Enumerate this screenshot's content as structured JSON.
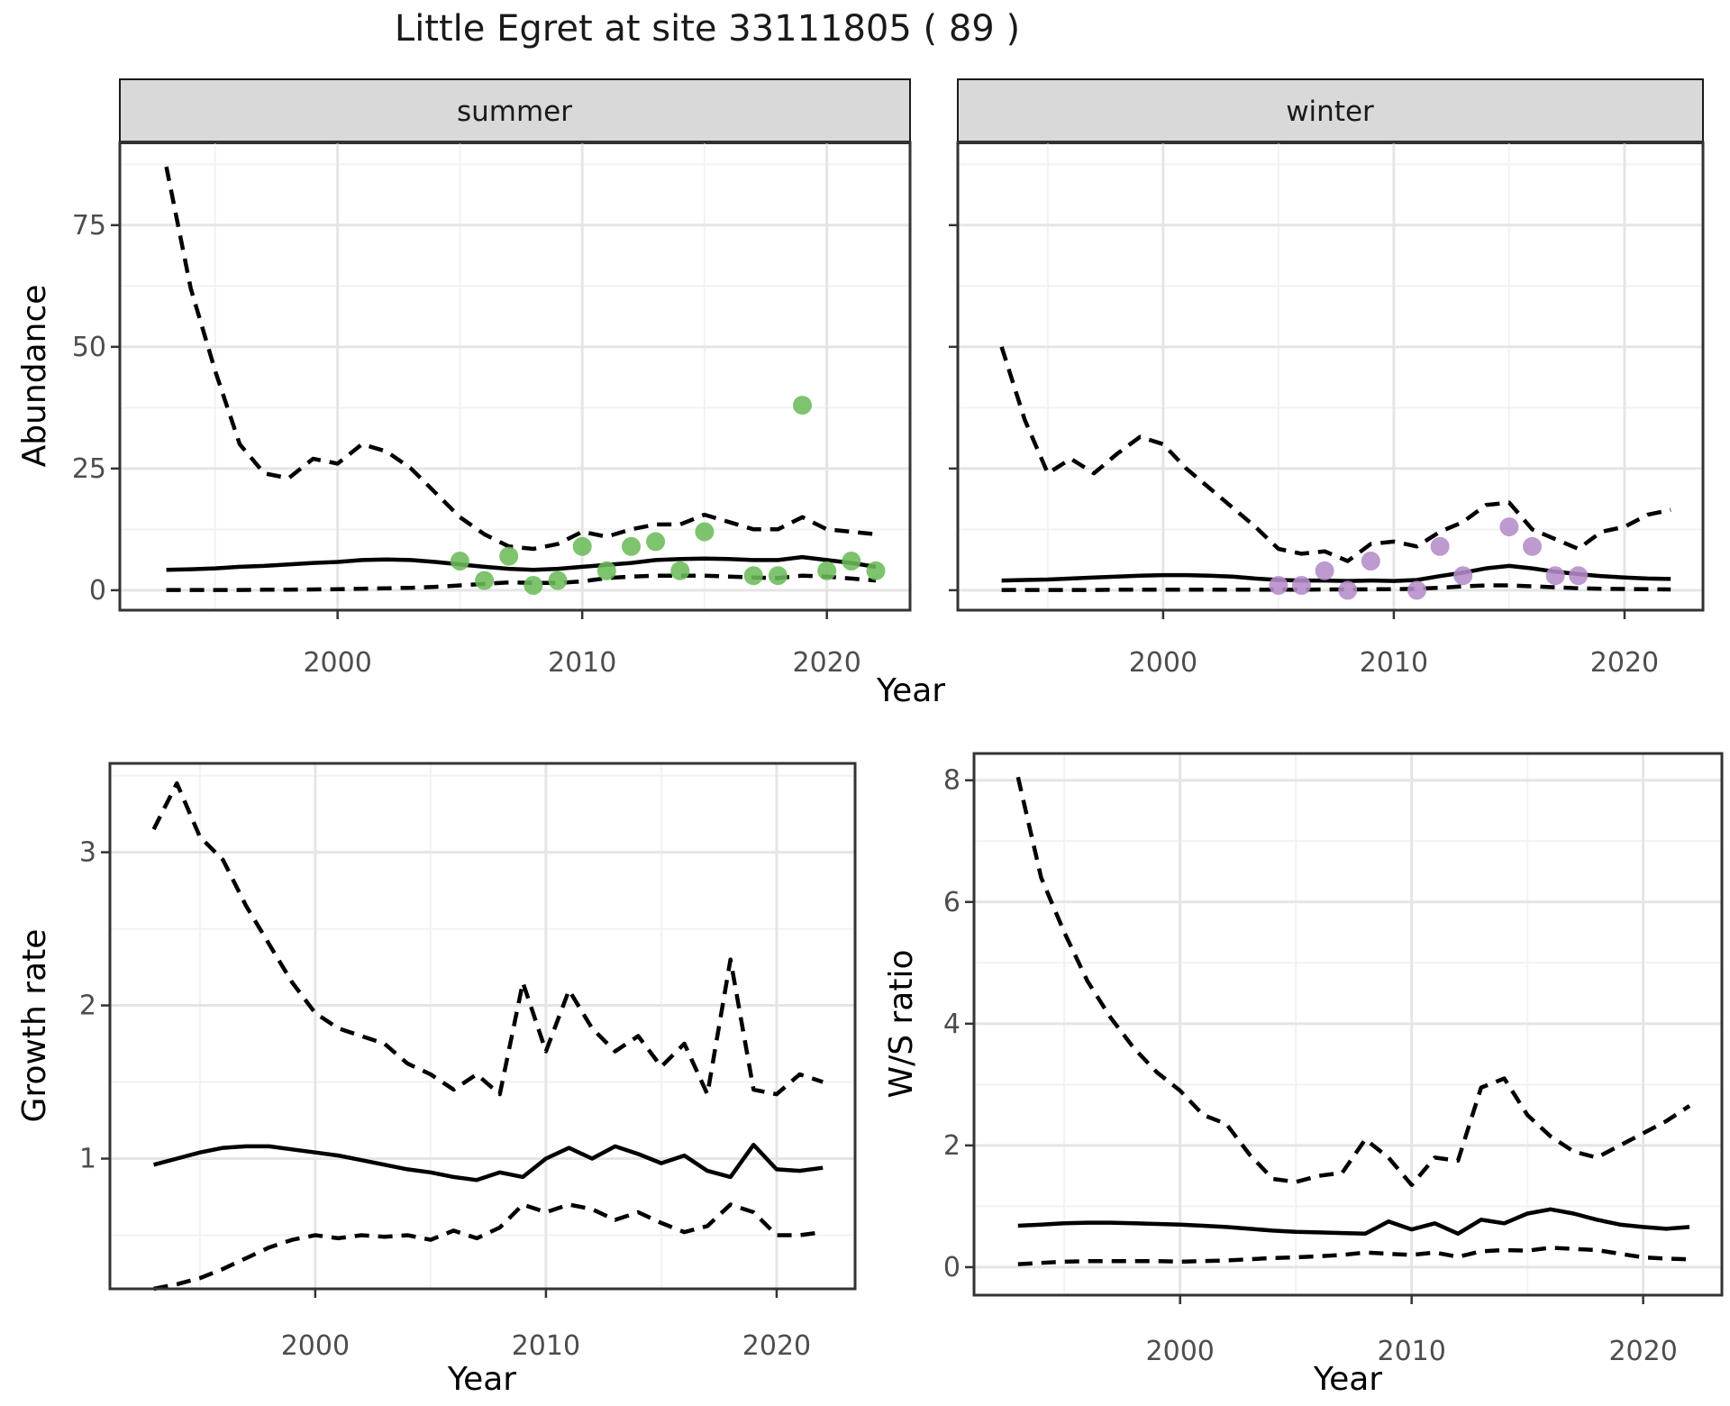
{
  "title": "Little Egret at site 33111805 ( 89 )",
  "colors": {
    "summer_point": "#6CBB5A",
    "winter_point": "#B48CC8",
    "line": "#000000",
    "strip_bg": "#D9D9D9",
    "strip_border": "#1a1a1a",
    "panel_border": "#333333",
    "grid_major": "#E5E5E5",
    "grid_minor": "#F2F2F2",
    "tick_text": "#4d4d4d"
  },
  "years": [
    1993,
    1994,
    1995,
    1996,
    1997,
    1998,
    1999,
    2000,
    2001,
    2002,
    2003,
    2004,
    2005,
    2006,
    2007,
    2008,
    2009,
    2010,
    2011,
    2012,
    2013,
    2014,
    2015,
    2016,
    2017,
    2018,
    2019,
    2020,
    2021,
    2022
  ],
  "chart_data": [
    {
      "id": "abundance-summer",
      "type": "line",
      "facet_label": "summer",
      "xlabel": "Year",
      "ylabel": "Abundance",
      "xlim": [
        1991.1,
        2023.4
      ],
      "ylim": [
        -4.1,
        92
      ],
      "xticks": [
        2000,
        2010,
        2020
      ],
      "xticks_minor": [
        1995,
        2005,
        2015
      ],
      "yticks": [
        0,
        25,
        50,
        75
      ],
      "yticks_minor": [
        12.5,
        37.5,
        62.5,
        87.5
      ],
      "series": [
        {
          "name": "upper 95% CI",
          "style": "dashed",
          "values": [
            87,
            62,
            45,
            30,
            24,
            23,
            27,
            26,
            30,
            28.5,
            25,
            20,
            15,
            11.5,
            9,
            8.5,
            9.5,
            12,
            11,
            12.5,
            13.5,
            13.5,
            15.5,
            14,
            12.5,
            12.5,
            15,
            12.5,
            12,
            11.5
          ]
        },
        {
          "name": "modelled mean",
          "style": "solid",
          "values": [
            4.2,
            4.3,
            4.5,
            4.8,
            5.0,
            5.3,
            5.6,
            5.8,
            6.2,
            6.3,
            6.2,
            5.8,
            5.3,
            4.8,
            4.4,
            4.2,
            4.4,
            4.8,
            5.2,
            5.6,
            6.2,
            6.4,
            6.5,
            6.4,
            6.2,
            6.2,
            6.8,
            6.2,
            5.6,
            4.8
          ]
        },
        {
          "name": "lower 95% CI",
          "style": "dashed",
          "values": [
            0.05,
            0.05,
            0.05,
            0.05,
            0.1,
            0.1,
            0.15,
            0.2,
            0.3,
            0.4,
            0.5,
            0.7,
            1.0,
            1.3,
            1.6,
            1.5,
            1.5,
            1.8,
            2.5,
            2.8,
            3.0,
            3.0,
            3.0,
            2.8,
            2.6,
            2.5,
            3.0,
            2.8,
            2.4,
            2.0
          ]
        }
      ],
      "points": {
        "name": "observed summer counts",
        "color": "#6CBB5A",
        "data": [
          [
            2005,
            6
          ],
          [
            2006,
            2
          ],
          [
            2007,
            7
          ],
          [
            2008,
            1
          ],
          [
            2009,
            2
          ],
          [
            2010,
            9
          ],
          [
            2011,
            4
          ],
          [
            2012,
            9
          ],
          [
            2013,
            10
          ],
          [
            2014,
            4
          ],
          [
            2015,
            12
          ],
          [
            2017,
            3
          ],
          [
            2018,
            3
          ],
          [
            2019,
            38
          ],
          [
            2020,
            4
          ],
          [
            2021,
            6
          ],
          [
            2022,
            4
          ]
        ]
      }
    },
    {
      "id": "abundance-winter",
      "type": "line",
      "facet_label": "winter",
      "xlabel": "Year",
      "ylabel": "",
      "xlim": [
        1991.1,
        2023.4
      ],
      "ylim": [
        -4.1,
        92
      ],
      "xticks": [
        2000,
        2010,
        2020
      ],
      "xticks_minor": [
        1995,
        2005,
        2015
      ],
      "yticks": [
        0,
        25,
        50,
        75
      ],
      "yticks_minor": [
        12.5,
        37.5,
        62.5,
        87.5
      ],
      "series": [
        {
          "name": "upper 95% CI",
          "style": "dashed",
          "values": [
            50,
            35,
            24,
            27,
            24,
            28,
            31.5,
            30,
            25,
            21,
            17,
            13,
            8.5,
            7.5,
            8,
            6,
            9.5,
            10,
            9,
            12,
            14,
            17.5,
            18,
            12.5,
            10.5,
            8.5,
            12,
            13,
            15.5,
            16.5
          ]
        },
        {
          "name": "modelled mean",
          "style": "solid",
          "values": [
            2.0,
            2.1,
            2.2,
            2.4,
            2.6,
            2.8,
            3.0,
            3.1,
            3.1,
            3.0,
            2.8,
            2.4,
            2.1,
            2.0,
            2.0,
            1.9,
            2.0,
            1.9,
            2.1,
            2.9,
            3.6,
            4.5,
            5.0,
            4.5,
            3.8,
            3.3,
            2.9,
            2.6,
            2.4,
            2.3
          ]
        },
        {
          "name": "lower 95% CI",
          "style": "dashed",
          "values": [
            0.05,
            0.05,
            0.05,
            0.05,
            0.05,
            0.1,
            0.1,
            0.1,
            0.1,
            0.1,
            0.1,
            0.1,
            0.1,
            0.1,
            0.15,
            0.15,
            0.2,
            0.2,
            0.3,
            0.5,
            0.8,
            1.0,
            1.0,
            0.8,
            0.6,
            0.4,
            0.3,
            0.25,
            0.2,
            0.15
          ]
        }
      ],
      "points": {
        "name": "observed winter counts",
        "color": "#B48CC8",
        "data": [
          [
            2005,
            1
          ],
          [
            2006,
            1
          ],
          [
            2007,
            4
          ],
          [
            2008,
            0
          ],
          [
            2009,
            6
          ],
          [
            2011,
            0
          ],
          [
            2012,
            9
          ],
          [
            2013,
            3
          ],
          [
            2015,
            13
          ],
          [
            2016,
            9
          ],
          [
            2017,
            3
          ],
          [
            2018,
            3
          ]
        ]
      }
    },
    {
      "id": "growth-rate",
      "type": "line",
      "xlabel": "Year",
      "ylabel": "Growth rate",
      "xlim": [
        1991.1,
        2023.4
      ],
      "ylim": [
        0.15,
        3.58
      ],
      "xticks": [
        2000,
        2010,
        2020
      ],
      "xticks_minor": [
        1995,
        2005,
        2015
      ],
      "yticks": [
        1,
        2,
        3
      ],
      "yticks_minor": [
        0.5,
        1.5,
        2.5,
        3.5
      ],
      "series": [
        {
          "name": "upper 95% CI",
          "style": "dashed",
          "values": [
            3.15,
            3.45,
            3.1,
            2.95,
            2.65,
            2.4,
            2.15,
            1.95,
            1.85,
            1.8,
            1.75,
            1.62,
            1.55,
            1.45,
            1.55,
            1.42,
            2.15,
            1.7,
            2.1,
            1.85,
            1.7,
            1.8,
            1.6,
            1.75,
            1.42,
            2.3,
            1.45,
            1.42,
            1.55,
            1.5
          ]
        },
        {
          "name": "modelled mean",
          "style": "solid",
          "values": [
            0.96,
            1.0,
            1.04,
            1.07,
            1.08,
            1.08,
            1.06,
            1.04,
            1.02,
            0.99,
            0.96,
            0.93,
            0.91,
            0.88,
            0.86,
            0.91,
            0.88,
            1.0,
            1.07,
            1.0,
            1.08,
            1.03,
            0.97,
            1.02,
            0.92,
            0.88,
            1.09,
            0.93,
            0.92,
            0.94
          ]
        },
        {
          "name": "lower 95% CI",
          "style": "dashed",
          "values": [
            0.15,
            0.18,
            0.22,
            0.28,
            0.35,
            0.42,
            0.47,
            0.5,
            0.48,
            0.5,
            0.49,
            0.5,
            0.47,
            0.53,
            0.48,
            0.55,
            0.7,
            0.65,
            0.7,
            0.67,
            0.6,
            0.65,
            0.58,
            0.52,
            0.56,
            0.7,
            0.65,
            0.5,
            0.5,
            0.52
          ]
        }
      ]
    },
    {
      "id": "ws-ratio",
      "type": "line",
      "xlabel": "Year",
      "ylabel": "W/S ratio",
      "xlim": [
        1991.1,
        2023.4
      ],
      "ylim": [
        -0.46,
        8.44
      ],
      "xticks": [
        2000,
        2010,
        2020
      ],
      "xticks_minor": [
        1995,
        2005,
        2015
      ],
      "yticks": [
        0,
        2,
        4,
        6,
        8
      ],
      "yticks_minor": [
        1,
        3,
        5,
        7
      ],
      "series": [
        {
          "name": "upper 95% CI",
          "style": "dashed",
          "values": [
            8.05,
            6.4,
            5.5,
            4.7,
            4.1,
            3.6,
            3.2,
            2.9,
            2.5,
            2.35,
            1.85,
            1.45,
            1.4,
            1.5,
            1.55,
            2.1,
            1.8,
            1.35,
            1.8,
            1.75,
            2.95,
            3.1,
            2.5,
            2.15,
            1.9,
            1.8,
            2.0,
            2.2,
            2.4,
            2.65
          ]
        },
        {
          "name": "modelled mean",
          "style": "solid",
          "values": [
            0.68,
            0.7,
            0.72,
            0.73,
            0.73,
            0.72,
            0.71,
            0.7,
            0.68,
            0.66,
            0.63,
            0.6,
            0.58,
            0.57,
            0.56,
            0.55,
            0.75,
            0.62,
            0.72,
            0.55,
            0.78,
            0.72,
            0.88,
            0.95,
            0.88,
            0.78,
            0.7,
            0.66,
            0.63,
            0.66
          ]
        },
        {
          "name": "lower 95% CI",
          "style": "dashed",
          "values": [
            0.05,
            0.07,
            0.09,
            0.1,
            0.1,
            0.1,
            0.1,
            0.09,
            0.1,
            0.11,
            0.13,
            0.15,
            0.16,
            0.18,
            0.2,
            0.24,
            0.22,
            0.2,
            0.24,
            0.17,
            0.26,
            0.28,
            0.27,
            0.32,
            0.3,
            0.28,
            0.22,
            0.16,
            0.14,
            0.13
          ]
        }
      ]
    }
  ]
}
